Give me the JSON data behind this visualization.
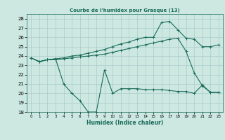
{
  "title": "Courbe de l'humidex pour Grasque (13)",
  "xlabel": "Humidex (Indice chaleur)",
  "bg_color": "#cce8e0",
  "grid_color": "#aacccc",
  "line_color": "#1a6b5a",
  "ylim": [
    18,
    28.5
  ],
  "xlim": [
    -0.5,
    23.5
  ],
  "yticks": [
    18,
    19,
    20,
    21,
    22,
    23,
    24,
    25,
    26,
    27,
    28
  ],
  "xticks": [
    0,
    1,
    2,
    3,
    4,
    5,
    6,
    7,
    8,
    9,
    10,
    11,
    12,
    13,
    14,
    15,
    16,
    17,
    18,
    19,
    20,
    21,
    22,
    23
  ],
  "line1_x": [
    0,
    1,
    2,
    3,
    4,
    5,
    6,
    7,
    8,
    9,
    10,
    11,
    12,
    13,
    14,
    15,
    16,
    17,
    18,
    19,
    20,
    21,
    22,
    23
  ],
  "line1_y": [
    23.8,
    23.4,
    23.6,
    23.6,
    23.7,
    23.8,
    23.9,
    24.0,
    24.1,
    24.2,
    24.4,
    24.6,
    24.8,
    25.0,
    25.2,
    25.4,
    25.6,
    25.8,
    25.9,
    24.5,
    22.2,
    20.8,
    20.1,
    20.1
  ],
  "line2_x": [
    0,
    1,
    2,
    3,
    4,
    5,
    6,
    7,
    8,
    9,
    10,
    11,
    12,
    13,
    14,
    15,
    16,
    17,
    18,
    19,
    20,
    21,
    22,
    23
  ],
  "line2_y": [
    23.8,
    23.4,
    23.6,
    23.7,
    23.8,
    24.0,
    24.1,
    24.3,
    24.5,
    24.7,
    25.0,
    25.3,
    25.5,
    25.8,
    26.0,
    26.0,
    27.6,
    27.7,
    26.8,
    25.9,
    25.8,
    25.0,
    25.0,
    25.2
  ],
  "line3_x": [
    0,
    1,
    2,
    3,
    4,
    5,
    6,
    7,
    8,
    9,
    10,
    11,
    12,
    13,
    14,
    15,
    16,
    17,
    18,
    19,
    20,
    21,
    22,
    23
  ],
  "line3_y": [
    23.8,
    23.4,
    23.6,
    23.7,
    21.0,
    20.0,
    19.2,
    18.0,
    18.0,
    22.5,
    20.0,
    20.5,
    20.5,
    20.5,
    20.4,
    20.4,
    20.4,
    20.3,
    20.2,
    20.2,
    20.0,
    20.9,
    20.1,
    20.1
  ]
}
